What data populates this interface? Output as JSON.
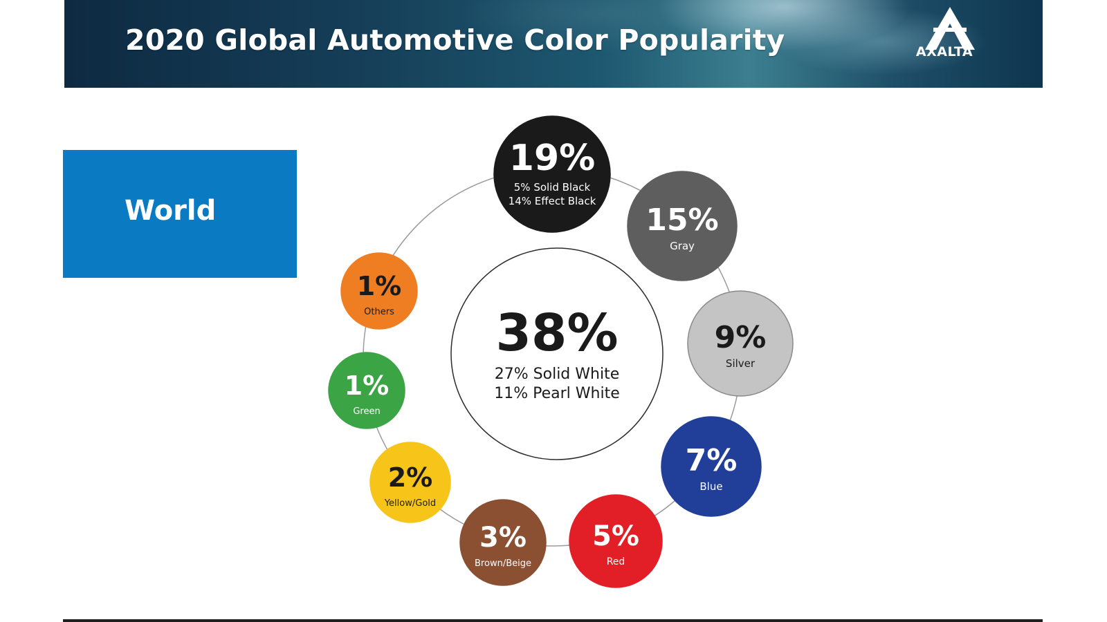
{
  "header": {
    "title": "2020 Global Automotive Color Popularity",
    "logo_text": "AXALTA"
  },
  "region": {
    "label": "World"
  },
  "chart_data": {
    "type": "pie",
    "title": "2020 Global Automotive Color Popularity",
    "region": "World",
    "center": {
      "label": "White",
      "value": 38,
      "value_text": "38%",
      "detail_lines": [
        "27% Solid White",
        "11% Pearl White"
      ],
      "color": "#ffffff"
    },
    "categories": [
      "Black",
      "Gray",
      "Silver",
      "Blue",
      "Red",
      "Brown/Beige",
      "Yellow/Gold",
      "Green",
      "Others"
    ],
    "values": [
      19,
      15,
      9,
      7,
      5,
      3,
      2,
      1,
      1
    ],
    "slices": [
      {
        "label": "Black",
        "value": 19,
        "value_text": "19%",
        "detail_lines": [
          "5% Solid Black",
          "14% Effect Black"
        ],
        "color": "#1a1a1a",
        "text_color": "#ffffff"
      },
      {
        "label": "Gray",
        "value": 15,
        "value_text": "15%",
        "detail_lines": [
          "Gray"
        ],
        "color": "#5e5e5e",
        "text_color": "#ffffff"
      },
      {
        "label": "Silver",
        "value": 9,
        "value_text": "9%",
        "detail_lines": [
          "Silver"
        ],
        "color": "#c4c4c4",
        "text_color": "#1a1a1a"
      },
      {
        "label": "Blue",
        "value": 7,
        "value_text": "7%",
        "detail_lines": [
          "Blue"
        ],
        "color": "#213f99",
        "text_color": "#ffffff"
      },
      {
        "label": "Red",
        "value": 5,
        "value_text": "5%",
        "detail_lines": [
          "Red"
        ],
        "color": "#e21f26",
        "text_color": "#ffffff"
      },
      {
        "label": "Brown/Beige",
        "value": 3,
        "value_text": "3%",
        "detail_lines": [
          "Brown/Beige"
        ],
        "color": "#8b4f32",
        "text_color": "#ffffff"
      },
      {
        "label": "Yellow/Gold",
        "value": 2,
        "value_text": "2%",
        "detail_lines": [
          "Yellow/Gold"
        ],
        "color": "#f7c51a",
        "text_color": "#1a1a1a"
      },
      {
        "label": "Green",
        "value": 1,
        "value_text": "1%",
        "detail_lines": [
          "Green"
        ],
        "color": "#3ba445",
        "text_color": "#ffffff"
      },
      {
        "label": "Others",
        "value": 1,
        "value_text": "1%",
        "detail_lines": [
          "Others"
        ],
        "color": "#ef7d22",
        "text_color": "#1a1a1a"
      }
    ],
    "unit": "%"
  }
}
